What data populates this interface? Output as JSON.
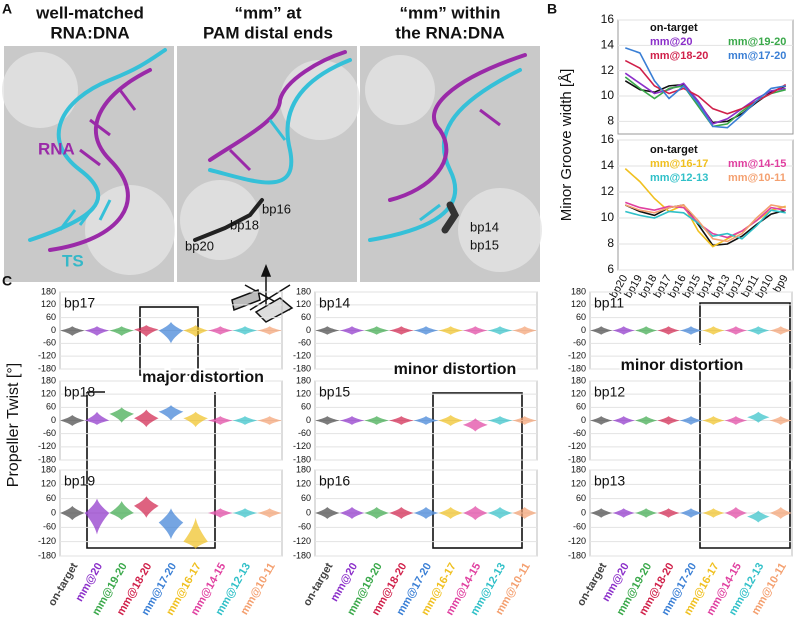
{
  "panel_labels": [
    "A",
    "B",
    "C"
  ],
  "structures": [
    {
      "title_lines": [
        "well-matched",
        "RNA:DNA"
      ],
      "labels": [
        "RNA",
        "TS"
      ]
    },
    {
      "title_lines": [
        "“mm” at",
        "PAM distal ends"
      ],
      "labels": [
        "bp16",
        "bp18",
        "bp20"
      ]
    },
    {
      "title_lines": [
        "“mm” within",
        "the RNA:DNA"
      ],
      "labels": [
        "bp14",
        "bp15"
      ]
    }
  ],
  "chart_data": [
    {
      "type": "line",
      "ylabel": "Minor Groove width [Å]",
      "ylim": [
        7,
        16
      ],
      "yticks": [
        8,
        10,
        12,
        14,
        16
      ],
      "categories": [
        null,
        null,
        null,
        null,
        null,
        null,
        null,
        null,
        null,
        null,
        null,
        null
      ],
      "series": [
        {
          "name": "on-target",
          "color": "#111111",
          "values": [
            11.2,
            10.5,
            10.3,
            10.8,
            10.9,
            9.5,
            7.9,
            8.0,
            8.6,
            9.5,
            10.3,
            10.8
          ]
        },
        {
          "name": "mm@20",
          "color": "#8b2fc9",
          "values": [
            11.8,
            11.0,
            10.2,
            10.5,
            11.0,
            9.6,
            7.8,
            8.2,
            9.0,
            9.8,
            10.4,
            10.6
          ]
        },
        {
          "name": "mm@19-20",
          "color": "#3aa84a",
          "values": [
            11.5,
            10.6,
            9.8,
            10.6,
            10.8,
            9.2,
            7.6,
            7.8,
            8.8,
            9.6,
            10.2,
            10.5
          ]
        },
        {
          "name": "mm@18-20",
          "color": "#d0204a",
          "values": [
            12.8,
            12.2,
            10.8,
            10.2,
            10.6,
            10.0,
            9.0,
            8.6,
            9.0,
            9.6,
            10.2,
            10.9
          ]
        },
        {
          "name": "mm@17-20",
          "color": "#3a7fd5",
          "values": [
            13.8,
            13.4,
            11.2,
            9.8,
            10.8,
            9.4,
            7.6,
            7.5,
            8.5,
            9.6,
            10.6,
            10.8
          ]
        }
      ]
    },
    {
      "type": "line",
      "ylim": [
        6,
        16
      ],
      "yticks": [
        6,
        8,
        10,
        12,
        14,
        16
      ],
      "categories": [
        "bp20",
        "bp19",
        "bp18",
        "bp17",
        "bp16",
        "bp15",
        "bp14",
        "bp13",
        "bp12",
        "bp11",
        "bp10",
        "bp9"
      ],
      "series": [
        {
          "name": "on-target",
          "color": "#111111",
          "values": [
            11.0,
            10.5,
            10.2,
            10.8,
            11.0,
            9.5,
            7.9,
            8.0,
            8.6,
            9.5,
            10.3,
            10.6
          ]
        },
        {
          "name": "mm@16-17",
          "color": "#f0c020",
          "values": [
            13.8,
            12.8,
            11.5,
            10.5,
            11.0,
            9.0,
            7.8,
            8.4,
            9.0,
            9.8,
            10.6,
            10.9
          ]
        },
        {
          "name": "mm@14-15",
          "color": "#e040a0",
          "values": [
            11.2,
            10.8,
            10.6,
            10.9,
            10.8,
            9.6,
            8.8,
            8.5,
            9.0,
            9.8,
            10.8,
            10.6
          ]
        },
        {
          "name": "mm@12-13",
          "color": "#30c0c8",
          "values": [
            10.5,
            10.2,
            10.0,
            10.5,
            10.4,
            9.6,
            8.6,
            8.8,
            8.4,
            9.4,
            10.6,
            10.4
          ]
        },
        {
          "name": "mm@10-11",
          "color": "#f4a070",
          "values": [
            11.0,
            10.6,
            10.4,
            10.8,
            11.0,
            9.8,
            8.4,
            8.2,
            8.8,
            10.0,
            11.0,
            10.8
          ]
        }
      ]
    },
    {
      "type": "violin",
      "ylabel": "Propeller Twist [°]",
      "annotation": "major distortion",
      "ylim": [
        -180,
        180
      ],
      "yticks": [
        180,
        120,
        60,
        0,
        -60,
        -120,
        -180
      ],
      "categories": [
        "on-target",
        "mm@20",
        "mm@19-20",
        "mm@18-20",
        "mm@17-20",
        "mm@16-17",
        "mm@14-15",
        "mm@12-13",
        "mm@10-11"
      ],
      "colors": [
        "#444444",
        "#8b2fc9",
        "#3aa84a",
        "#d0204a",
        "#3a7fd5",
        "#f0c020",
        "#e040a0",
        "#30c0c8",
        "#f4a070"
      ],
      "series": [
        {
          "name": "bp17",
          "values": [
            0,
            0,
            0,
            5,
            0,
            0,
            0,
            0,
            0
          ],
          "lows": [
            -25,
            -25,
            -25,
            -30,
            -60,
            -30,
            -20,
            -20,
            -20
          ],
          "highs": [
            20,
            20,
            20,
            25,
            40,
            25,
            20,
            20,
            20
          ]
        },
        {
          "name": "bp18",
          "values": [
            0,
            0,
            30,
            10,
            40,
            10,
            0,
            0,
            0
          ],
          "lows": [
            -25,
            -20,
            -10,
            -30,
            0,
            -30,
            -20,
            -20,
            -20
          ],
          "highs": [
            25,
            40,
            60,
            50,
            70,
            40,
            20,
            20,
            20
          ]
        },
        {
          "name": "bp19",
          "values": [
            0,
            0,
            0,
            30,
            -40,
            -120,
            0,
            0,
            0
          ],
          "lows": [
            -30,
            -90,
            -30,
            -20,
            -110,
            -150,
            -20,
            -20,
            -20
          ],
          "highs": [
            30,
            60,
            50,
            70,
            20,
            -20,
            20,
            20,
            20
          ]
        }
      ]
    },
    {
      "type": "violin",
      "annotation": "minor distortion",
      "ylim": [
        -180,
        180
      ],
      "yticks": [
        180,
        120,
        60,
        0,
        -60,
        -120,
        -180
      ],
      "categories": [
        "on-target",
        "mm@20",
        "mm@19-20",
        "mm@18-20",
        "mm@17-20",
        "mm@16-17",
        "mm@14-15",
        "mm@12-13",
        "mm@10-11"
      ],
      "colors": [
        "#444444",
        "#8b2fc9",
        "#3aa84a",
        "#d0204a",
        "#3a7fd5",
        "#f0c020",
        "#e040a0",
        "#30c0c8",
        "#f4a070"
      ],
      "series": [
        {
          "name": "bp14",
          "values": [
            0,
            0,
            0,
            0,
            0,
            0,
            0,
            0,
            0
          ],
          "lows": [
            -20,
            -20,
            -20,
            -20,
            -20,
            -20,
            -20,
            -20,
            -20
          ],
          "highs": [
            20,
            20,
            20,
            20,
            20,
            20,
            20,
            20,
            20
          ]
        },
        {
          "name": "bp15",
          "values": [
            0,
            0,
            0,
            0,
            0,
            0,
            -20,
            0,
            0
          ],
          "lows": [
            -20,
            -20,
            -20,
            -20,
            -20,
            -25,
            -50,
            -20,
            -20
          ],
          "highs": [
            20,
            20,
            20,
            20,
            20,
            25,
            10,
            20,
            20
          ]
        },
        {
          "name": "bp16",
          "values": [
            0,
            0,
            0,
            0,
            0,
            0,
            0,
            0,
            0
          ],
          "lows": [
            -25,
            -25,
            -25,
            -25,
            -25,
            -25,
            -30,
            -25,
            -25
          ],
          "highs": [
            25,
            25,
            25,
            25,
            25,
            25,
            30,
            25,
            25
          ]
        }
      ]
    },
    {
      "type": "violin",
      "annotation": "minor distortion",
      "ylim": [
        -180,
        180
      ],
      "yticks": [
        180,
        120,
        60,
        0,
        -60,
        -120,
        -180
      ],
      "categories": [
        "on-target",
        "mm@20",
        "mm@19-20",
        "mm@18-20",
        "mm@17-20",
        "mm@16-17",
        "mm@14-15",
        "mm@12-13",
        "mm@10-11"
      ],
      "colors": [
        "#444444",
        "#8b2fc9",
        "#3aa84a",
        "#d0204a",
        "#3a7fd5",
        "#f0c020",
        "#e040a0",
        "#30c0c8",
        "#f4a070"
      ],
      "series": [
        {
          "name": "bp11",
          "values": [
            0,
            0,
            0,
            0,
            0,
            0,
            0,
            0,
            0
          ],
          "lows": [
            -20,
            -20,
            -20,
            -20,
            -20,
            -20,
            -20,
            -20,
            -20
          ],
          "highs": [
            20,
            20,
            20,
            20,
            20,
            20,
            20,
            20,
            20
          ]
        },
        {
          "name": "bp12",
          "values": [
            0,
            0,
            0,
            0,
            0,
            0,
            0,
            15,
            0
          ],
          "lows": [
            -20,
            -20,
            -20,
            -20,
            -20,
            -20,
            -20,
            -10,
            -20
          ],
          "highs": [
            20,
            20,
            20,
            20,
            20,
            20,
            20,
            40,
            20
          ]
        },
        {
          "name": "bp13",
          "values": [
            0,
            0,
            0,
            0,
            0,
            0,
            0,
            -15,
            0
          ],
          "lows": [
            -20,
            -20,
            -20,
            -20,
            -20,
            -20,
            -25,
            -40,
            -25
          ],
          "highs": [
            20,
            20,
            20,
            20,
            20,
            20,
            25,
            10,
            25
          ]
        }
      ]
    }
  ]
}
